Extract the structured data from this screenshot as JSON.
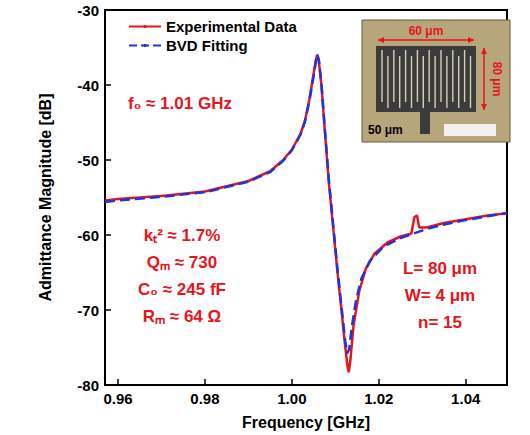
{
  "chart_data": {
    "type": "line",
    "x_label": "Frequency [GHz]",
    "y_label": "Admittance Magnitude [dB]",
    "xlim": [
      0.957,
      1.0495
    ],
    "xticks": [
      0.96,
      0.98,
      {
        "value": 1.0,
        "label": "1.00"
      },
      1.02,
      1.04
    ],
    "ylim": [
      -80,
      -30
    ],
    "yticks": [
      -80,
      -70,
      -60,
      -50,
      -40,
      -30
    ],
    "grid": false,
    "legend": "upper left",
    "series": [
      {
        "name": "Experimental Data",
        "color": "#e8141b",
        "line_style": "solid",
        "x": [
          0.957,
          0.96,
          0.97,
          0.98,
          0.99,
          0.995,
          0.998,
          1.0,
          1.002,
          1.003,
          1.004,
          1.005,
          1.0055,
          1.0058,
          1.0062,
          1.0068,
          1.0075,
          1.0085,
          1.0095,
          1.0105,
          1.0115,
          1.0122,
          1.0128,
          1.0131,
          1.0135,
          1.0142,
          1.0155,
          1.017,
          1.019,
          1.022,
          1.025,
          1.0275,
          1.0282,
          1.0288,
          1.0293,
          1.031,
          1.035,
          1.04,
          1.045,
          1.0495
        ],
        "values": [
          -55.4,
          -55.2,
          -54.8,
          -54.2,
          -52.8,
          -51.5,
          -50.0,
          -48.6,
          -46.5,
          -44.8,
          -42.0,
          -38.5,
          -36.8,
          -36.0,
          -36.8,
          -40.0,
          -45.5,
          -53.0,
          -59.0,
          -65.0,
          -70.5,
          -74.5,
          -77.5,
          -78.3,
          -76.5,
          -72.0,
          -67.5,
          -64.5,
          -62.5,
          -61.0,
          -60.2,
          -59.8,
          -57.6,
          -57.4,
          -59.0,
          -59.0,
          -58.4,
          -57.9,
          -57.4,
          -57.1
        ]
      },
      {
        "name": "BVD Fitting",
        "color": "#2233dd",
        "line_style": "dashed",
        "x": [
          0.957,
          0.96,
          0.97,
          0.98,
          0.99,
          0.995,
          0.998,
          1.0,
          1.002,
          1.003,
          1.004,
          1.005,
          1.0055,
          1.0058,
          1.0062,
          1.0068,
          1.0075,
          1.0085,
          1.0095,
          1.0105,
          1.0115,
          1.0122,
          1.0127,
          1.0132,
          1.0138,
          1.0148,
          1.016,
          1.018,
          1.021,
          1.025,
          1.028,
          1.031,
          1.035,
          1.04,
          1.045,
          1.0495
        ],
        "values": [
          -55.6,
          -55.4,
          -54.9,
          -54.3,
          -52.9,
          -51.6,
          -50.1,
          -48.7,
          -46.6,
          -44.9,
          -42.2,
          -38.8,
          -36.9,
          -35.9,
          -36.6,
          -39.8,
          -45.2,
          -52.6,
          -58.6,
          -64.6,
          -70.0,
          -73.8,
          -75.8,
          -75.2,
          -72.2,
          -68.6,
          -65.8,
          -63.4,
          -61.6,
          -60.4,
          -59.8,
          -59.2,
          -58.6,
          -58.0,
          -57.5,
          -57.1
        ]
      }
    ],
    "annotations": {
      "resonance": "f₀ ≈ 1.01 GHz",
      "fit_parameters": [
        "kₜ² ≈ 1.7%",
        "Qₘ ≈ 730",
        "C₀ ≈ 245 fF",
        "Rₘ ≈ 64 Ω"
      ],
      "geometry": [
        "L= 80 μm",
        "W= 4 μm",
        "n= 15"
      ],
      "inset": {
        "width": "60 μm",
        "height": "80 μm",
        "scale_bar": "50 μm"
      }
    }
  }
}
